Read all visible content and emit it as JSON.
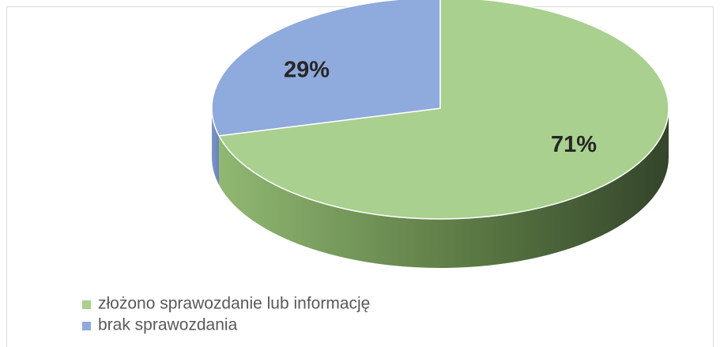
{
  "chart_data": {
    "type": "pie",
    "categories": [
      "złożono sprawozdanie lub informację",
      "brak sprawozdania"
    ],
    "values": [
      71,
      29
    ],
    "value_labels": [
      "71%",
      "29%"
    ],
    "colors": [
      "#a9d08e",
      "#8faadc"
    ],
    "legend": "bottom"
  }
}
